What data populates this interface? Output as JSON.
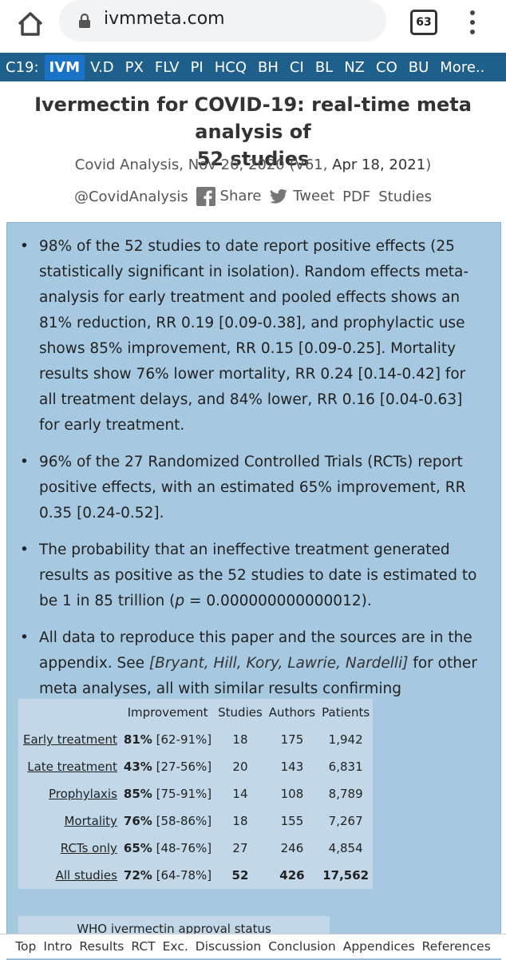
{
  "browser": {
    "url": "ivmmeta.com",
    "tab_count": "63"
  },
  "topnav": [
    "C19:",
    "IVM",
    "V.D",
    "PX",
    "FLV",
    "PI",
    "HCQ",
    "BH",
    "CI",
    "BL",
    "NZ",
    "CO",
    "BU",
    "More.."
  ],
  "title_line1": "Ivermectin for COVID-19: real-time meta analysis of",
  "title_line2": "52 studies",
  "byline": {
    "prefix": "Covid Analysis, Nov 26, 2020 (V61, ",
    "date": "Apr 18, 2021",
    "suffix": ")"
  },
  "social": {
    "handle": "@CovidAnalysis",
    "share": "Share",
    "tweet": "Tweet",
    "pdf": "PDF",
    "studies": "Studies"
  },
  "summary": {
    "b1": "98% of the 52 studies to date report positive effects (25 statistically significant in isolation). Random effects meta-analysis for early treatment and pooled effects shows an 81% reduction, RR 0.19 [0.09-0.38], and prophylactic use shows 85% improvement, RR 0.15 [0.09-0.25]. Mortality results show 76% lower mortality, RR 0.24 [0.14-0.42] for all treatment delays, and 84% lower, RR 0.16 [0.04-0.63] for early treatment.",
    "b2": "96% of the 27 Randomized Controlled Trials (RCTs) report positive effects, with an estimated 65% improvement, RR 0.35 [0.24-0.52].",
    "b3_pre": "The probability that an ineffective treatment generated results as positive as the 52 studies to date is estimated to be 1 in 85 trillion (",
    "b3_p": "p",
    "b3_post": " = 0.000000000000012).",
    "b4_pre": "All data to reproduce this paper and the sources are in the appendix. See ",
    "b4_refs": "[Bryant, Hill, Kory, Lawrie, Nardelli]",
    "b4_post": " for other meta analyses, all with similar results confirming effectiveness."
  },
  "table": {
    "headers": [
      "",
      "Improvement",
      "Studies",
      "Authors",
      "Patients"
    ],
    "rows": [
      {
        "label": "Early treatment",
        "pct": "81%",
        "ci": "[62-91%]",
        "studies": "18",
        "authors": "175",
        "patients": "1,942"
      },
      {
        "label": "Late treatment",
        "pct": "43%",
        "ci": "[27-56%]",
        "studies": "20",
        "authors": "143",
        "patients": "6,831"
      },
      {
        "label": "Prophylaxis",
        "pct": "85%",
        "ci": "[75-91%]",
        "studies": "14",
        "authors": "108",
        "patients": "8,789"
      },
      {
        "label": "Mortality",
        "pct": "76%",
        "ci": "[58-86%]",
        "studies": "18",
        "authors": "155",
        "patients": "7,267"
      },
      {
        "label": "RCTs only",
        "pct": "65%",
        "ci": "[48-76%]",
        "studies": "27",
        "authors": "246",
        "patients": "4,854"
      },
      {
        "label": "All studies",
        "pct": "72%",
        "ci": "[64-78%]",
        "studies": "52",
        "authors": "426",
        "patients": "17,562"
      }
    ]
  },
  "who": "WHO ivermectin approval status",
  "bottomnav": [
    "Top",
    "Intro",
    "Results",
    "RCT",
    "Exc.",
    "Discussion",
    "Conclusion",
    "Appendices",
    "References"
  ]
}
